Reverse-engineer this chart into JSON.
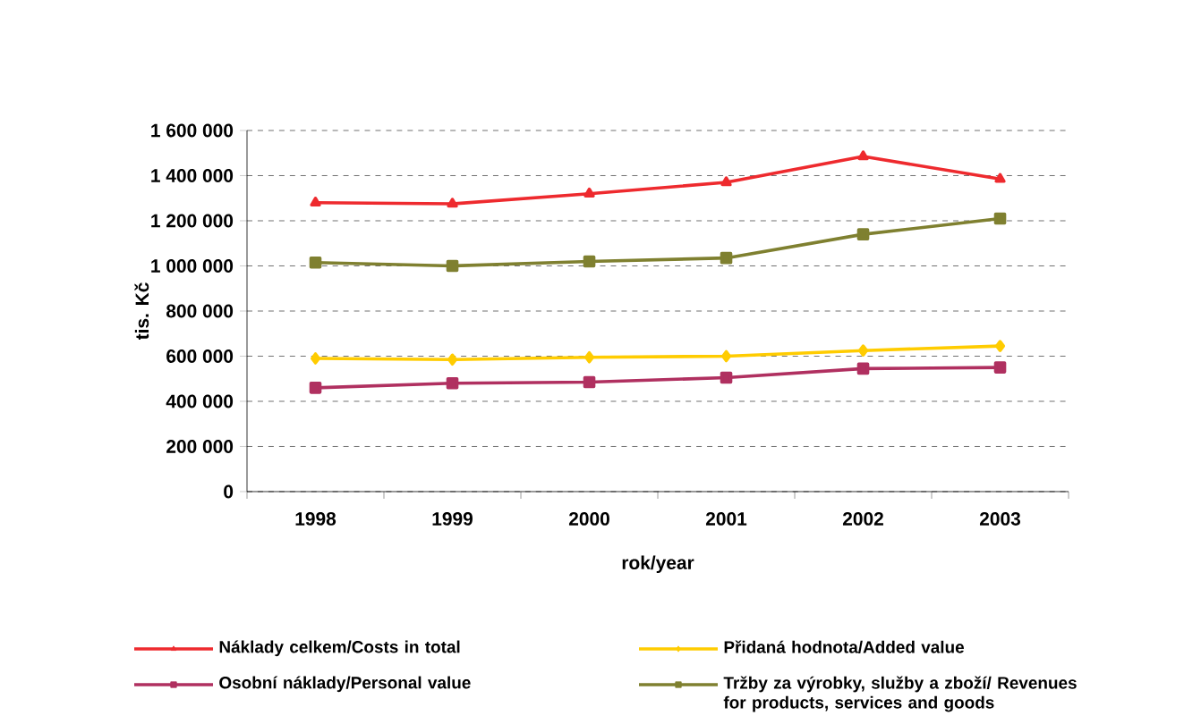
{
  "chart_data": {
    "type": "line",
    "xlabel": "rok/year",
    "ylabel": "tis. Kč",
    "categories": [
      "1998",
      "1999",
      "2000",
      "2001",
      "2002",
      "2003"
    ],
    "series": [
      {
        "name": "Náklady celkem/Costs in total",
        "color": "#ee2a2e",
        "marker": "triangle",
        "values": [
          1280000,
          1275000,
          1320000,
          1370000,
          1485000,
          1385000
        ]
      },
      {
        "name": "Přidaná hodnota/Added value",
        "color": "#ffcc00",
        "marker": "diamond",
        "values": [
          590000,
          585000,
          595000,
          600000,
          625000,
          645000
        ]
      },
      {
        "name": "Osobní náklady/Personal value",
        "color": "#b03060",
        "marker": "square",
        "values": [
          460000,
          480000,
          485000,
          505000,
          545000,
          550000
        ]
      },
      {
        "name": "Tržby za výrobky, služby a zboží/ Revenues for products, services and goods",
        "color": "#7f8030",
        "marker": "square",
        "values": [
          1015000,
          1000000,
          1020000,
          1035000,
          1140000,
          1210000
        ]
      }
    ],
    "ylim": [
      0,
      1600000
    ],
    "yticks": [
      {
        "value": 0,
        "label": "0"
      },
      {
        "value": 200000,
        "label": "200 000"
      },
      {
        "value": 400000,
        "label": "400 000"
      },
      {
        "value": 600000,
        "label": "600 000"
      },
      {
        "value": 800000,
        "label": "800 000"
      },
      {
        "value": 1000000,
        "label": "1 000 000"
      },
      {
        "value": 1200000,
        "label": "1 200 000"
      },
      {
        "value": 1400000,
        "label": "1 400 000"
      },
      {
        "value": 1600000,
        "label": "1 600 000"
      }
    ],
    "grid": "y",
    "legend": "bottom"
  }
}
